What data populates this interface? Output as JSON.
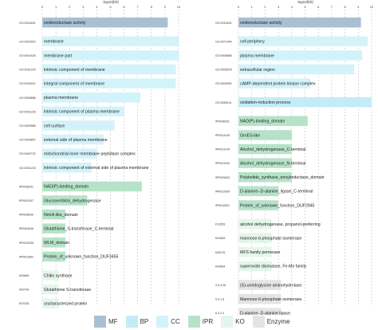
{
  "legend": [
    {
      "label": "MF",
      "key": "MF"
    },
    {
      "label": "BP",
      "key": "BP"
    },
    {
      "label": "CC",
      "key": "CC"
    },
    {
      "label": "IPR",
      "key": "IPR"
    },
    {
      "label": "KO",
      "key": "KO"
    },
    {
      "label": "Enzyme",
      "key": "Enzyme"
    }
  ],
  "colors": {
    "MF": "#a9bfd3",
    "BP": "#c4ecf7",
    "CC": "#d3f3fb",
    "IPR": "#b6e3c8",
    "KO": "#e4f6ec",
    "Enzyme": "#e4e4e4"
  },
  "chart_data": [
    {
      "type": "bar",
      "orientation": "horizontal",
      "xlabel": "-log10(fdr)",
      "ticks": [
        "0",
        "1",
        "2",
        "3",
        "4",
        "5",
        "6",
        "7",
        "8",
        "9",
        "10"
      ],
      "xlim": [
        0,
        10
      ],
      "grid": true,
      "bars": [
        {
          "id": "GO:0016491",
          "label": "oxidoreductase activity",
          "category": "MF",
          "value": 9.2
        },
        {
          "id": "GO:0016020",
          "label": "membrane",
          "category": "CC",
          "value": 10.0
        },
        {
          "id": "GO:0044425",
          "label": "membrane part",
          "category": "CC",
          "value": 10.0
        },
        {
          "id": "GO:0031224",
          "label": "intrinsic component of membrane",
          "category": "CC",
          "value": 9.8
        },
        {
          "id": "GO:0016021",
          "label": "integral component of membrane",
          "category": "CC",
          "value": 9.8
        },
        {
          "id": "GO:0005886",
          "label": "plasma membrane",
          "category": "CC",
          "value": 7.2
        },
        {
          "id": "GO:0031226",
          "label": "intrinsic component of plasma membrane",
          "category": "CC",
          "value": 6.0
        },
        {
          "id": "GO:0009986",
          "label": "cell surface",
          "category": "CC",
          "value": 5.3
        },
        {
          "id": "GO:0009897",
          "label": "external side of plasma membrane",
          "category": "CC",
          "value": 4.5
        },
        {
          "id": "GO:0042720",
          "label": "mitochondrial inner membrane peptidase complex",
          "category": "CC",
          "value": 4.0
        },
        {
          "id": "GO:0031233",
          "label": "intrinsic component of external side of plasma membrane",
          "category": "CC",
          "value": 3.6
        },
        {
          "id": "IPR036291",
          "label": "NAD(P)-binding_domain",
          "category": "IPR",
          "value": 7.3
        },
        {
          "id": "IPR002347",
          "label": "Glucose/ribitol_dehydrogenase",
          "category": "IPR",
          "value": 3.3
        },
        {
          "id": "IPR008030",
          "label": "NmrA-like_domain",
          "category": "IPR",
          "value": 1.7
        },
        {
          "id": "IPR004046",
          "label": "Glutathione_S-transferase_C-terminal",
          "category": "IPR",
          "value": 1.7
        },
        {
          "id": "IPR010339",
          "label": "WLM_domain",
          "category": "IPR",
          "value": 1.7
        },
        {
          "id": "IPR021852",
          "label": "Protein_of_unknown_function_DUF3455",
          "category": "IPR",
          "value": 1.7
        },
        {
          "id": "K00669",
          "label": "Chitin synthase",
          "category": "KO",
          "value": 1.2
        },
        {
          "id": "K00799",
          "label": "Glutathione S-transferase",
          "category": "KO",
          "value": 1.2
        },
        {
          "id": "K07026",
          "label": "uncharacterized protein",
          "category": "KO",
          "value": 1.2
        }
      ]
    },
    {
      "type": "bar",
      "orientation": "horizontal",
      "xlabel": "-log10(fdr)",
      "ticks": [
        "0",
        "1",
        "2",
        "3",
        "4",
        "5",
        "6",
        "7",
        "8",
        "9",
        "10"
      ],
      "xlim": [
        0,
        10
      ],
      "grid": true,
      "bars": [
        {
          "id": "GO:0016491",
          "label": "oxidoreductase activity",
          "category": "MF",
          "value": 9.2
        },
        {
          "id": "GO:0071944",
          "label": "cell periphery",
          "category": "CC",
          "value": 9.7
        },
        {
          "id": "GO:0005886",
          "label": "plasma membrane",
          "category": "CC",
          "value": 9.3
        },
        {
          "id": "GO:0005576",
          "label": "extracellular region",
          "category": "CC",
          "value": 8.7
        },
        {
          "id": "GO:0005952",
          "label": "cAMP-dependent protein kinase complex",
          "category": "CC",
          "value": 5.4
        },
        {
          "id": "GO:0055114",
          "label": "oxidation-reduction process",
          "category": "BP",
          "value": 10.0
        },
        {
          "id": "IPR036291",
          "label": "NAD(P)-binding_domain",
          "category": "IPR",
          "value": 5.2
        },
        {
          "id": "IPR013149",
          "label": "GroES-like",
          "category": "IPR",
          "value": 4.0
        },
        {
          "id": "IPR013149",
          "label": "Alcohol_dehydrogenase_C-terminal",
          "category": "IPR",
          "value": 4.0
        },
        {
          "id": "IPR013154",
          "label": "Alcohol_dehydrogenase_N-terminal",
          "category": "IPR",
          "value": 4.0
        },
        {
          "id": "IPR020843",
          "label": "Polyketide_synthase_enoylreductase_domain",
          "category": "IPR",
          "value": 4.0
        },
        {
          "id": "IPR012099",
          "label": "D-alanine--D-alanine_ligase_C-terminal",
          "category": "IPR",
          "value": 3.0
        },
        {
          "id": "IPR015331",
          "label": "Protein_of_unknown_function_DUF2945",
          "category": "IPR",
          "value": 3.0
        },
        {
          "id": "K13953",
          "label": "alcohol dehydrogenase, propanol-preferring",
          "category": "KO",
          "value": 2.5
        },
        {
          "id": "K01809",
          "label": "mannose-6-phosphate isomerase",
          "category": "KO",
          "value": 2.5
        },
        {
          "id": "K08176",
          "label": "MFS family permease",
          "category": "KO",
          "value": 2.5
        },
        {
          "id": "K04564",
          "label": "superoxide dismutase, Fe-Mn family",
          "category": "KO",
          "value": 2.5
        },
        {
          "id": "3.5.3.26",
          "label": "(S)-ureidoglycine aminohydrolase.",
          "category": "Enzyme",
          "value": 3.2
        },
        {
          "id": "5.3.1.8",
          "label": "Mannose-6-phosphate isomerase.",
          "category": "Enzyme",
          "value": 3.2
        },
        {
          "id": "6.3.2.4",
          "label": "D-alanine--D-alanine ligase.",
          "category": "Enzyme",
          "value": 3.2
        }
      ]
    }
  ]
}
